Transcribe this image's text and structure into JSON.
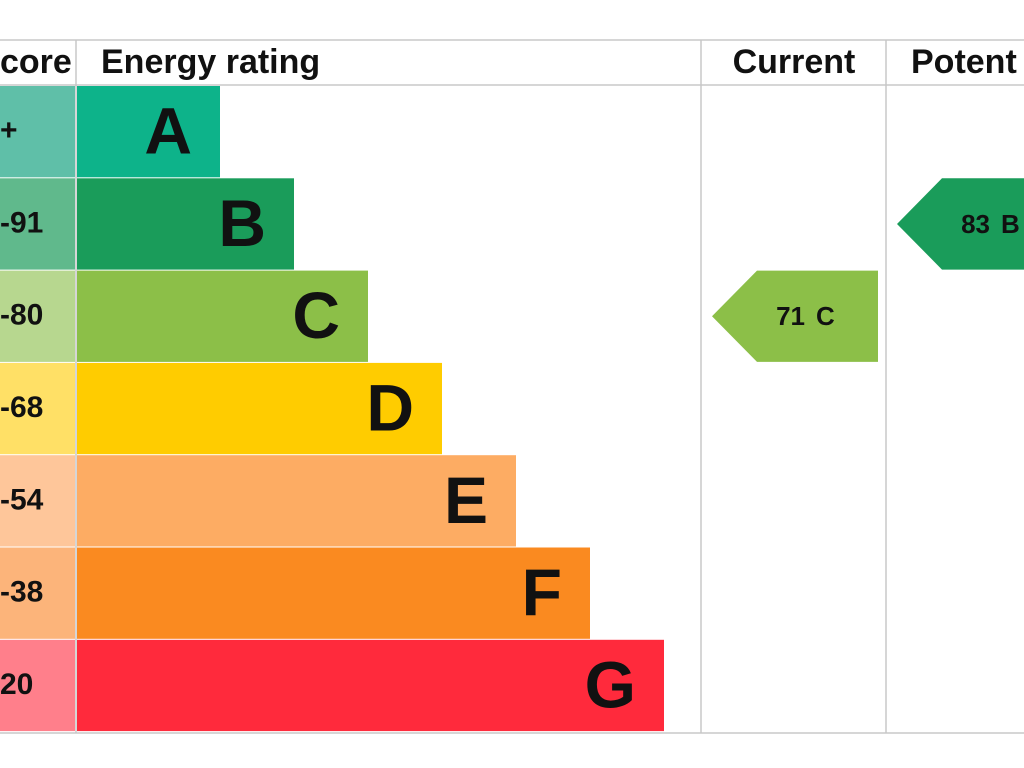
{
  "header": {
    "score": "core",
    "rating": "Energy rating",
    "current": "Current",
    "potential": "Potent"
  },
  "bands": [
    {
      "score": "+",
      "letter": "A",
      "color": "#0db38a",
      "light": "#5fbfa8"
    },
    {
      "score": "-91",
      "letter": "B",
      "color": "#1a9c5a",
      "light": "#60b98c"
    },
    {
      "score": "-80",
      "letter": "C",
      "color": "#8cbf48",
      "light": "#b7d78f"
    },
    {
      "score": "-68",
      "letter": "D",
      "color": "#ffcc00",
      "light": "#ffe066"
    },
    {
      "score": "-54",
      "letter": "E",
      "color": "#fdac63",
      "light": "#fec69a"
    },
    {
      "score": "-38",
      "letter": "F",
      "color": "#fa8a20",
      "light": "#fcb47a"
    },
    {
      "score": "20",
      "letter": "G",
      "color": "#ff2a3c",
      "light": "#ff7f8b"
    }
  ],
  "current": {
    "value": 71,
    "letter": "C",
    "color": "#8cbf48"
  },
  "potential": {
    "value": 83,
    "letter": "B",
    "color": "#1a9c5a"
  }
}
